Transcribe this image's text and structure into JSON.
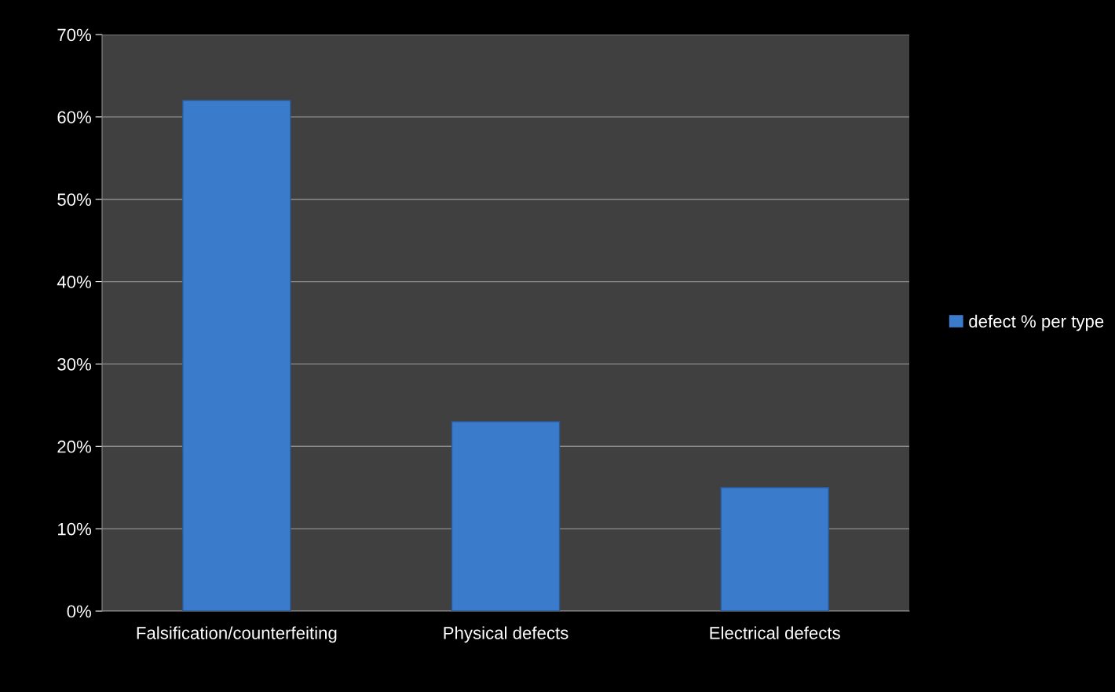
{
  "chart_data": {
    "type": "bar",
    "categories": [
      "Falsification/counterfeiting",
      "Physical defects",
      "Electrical defects"
    ],
    "series": [
      {
        "name": "defect % per type",
        "color": "#3b7bcc",
        "values": [
          62,
          23,
          15
        ]
      }
    ],
    "ylim": [
      0,
      70
    ],
    "yticks": [
      {
        "value": 0,
        "label": "0%"
      },
      {
        "value": 10,
        "label": "10%"
      },
      {
        "value": 20,
        "label": "20%"
      },
      {
        "value": 30,
        "label": "30%"
      },
      {
        "value": 40,
        "label": "40%"
      },
      {
        "value": 50,
        "label": "50%"
      },
      {
        "value": 60,
        "label": "60%"
      },
      {
        "value": 70,
        "label": "70%"
      }
    ],
    "grid": "y",
    "legend": "right"
  }
}
